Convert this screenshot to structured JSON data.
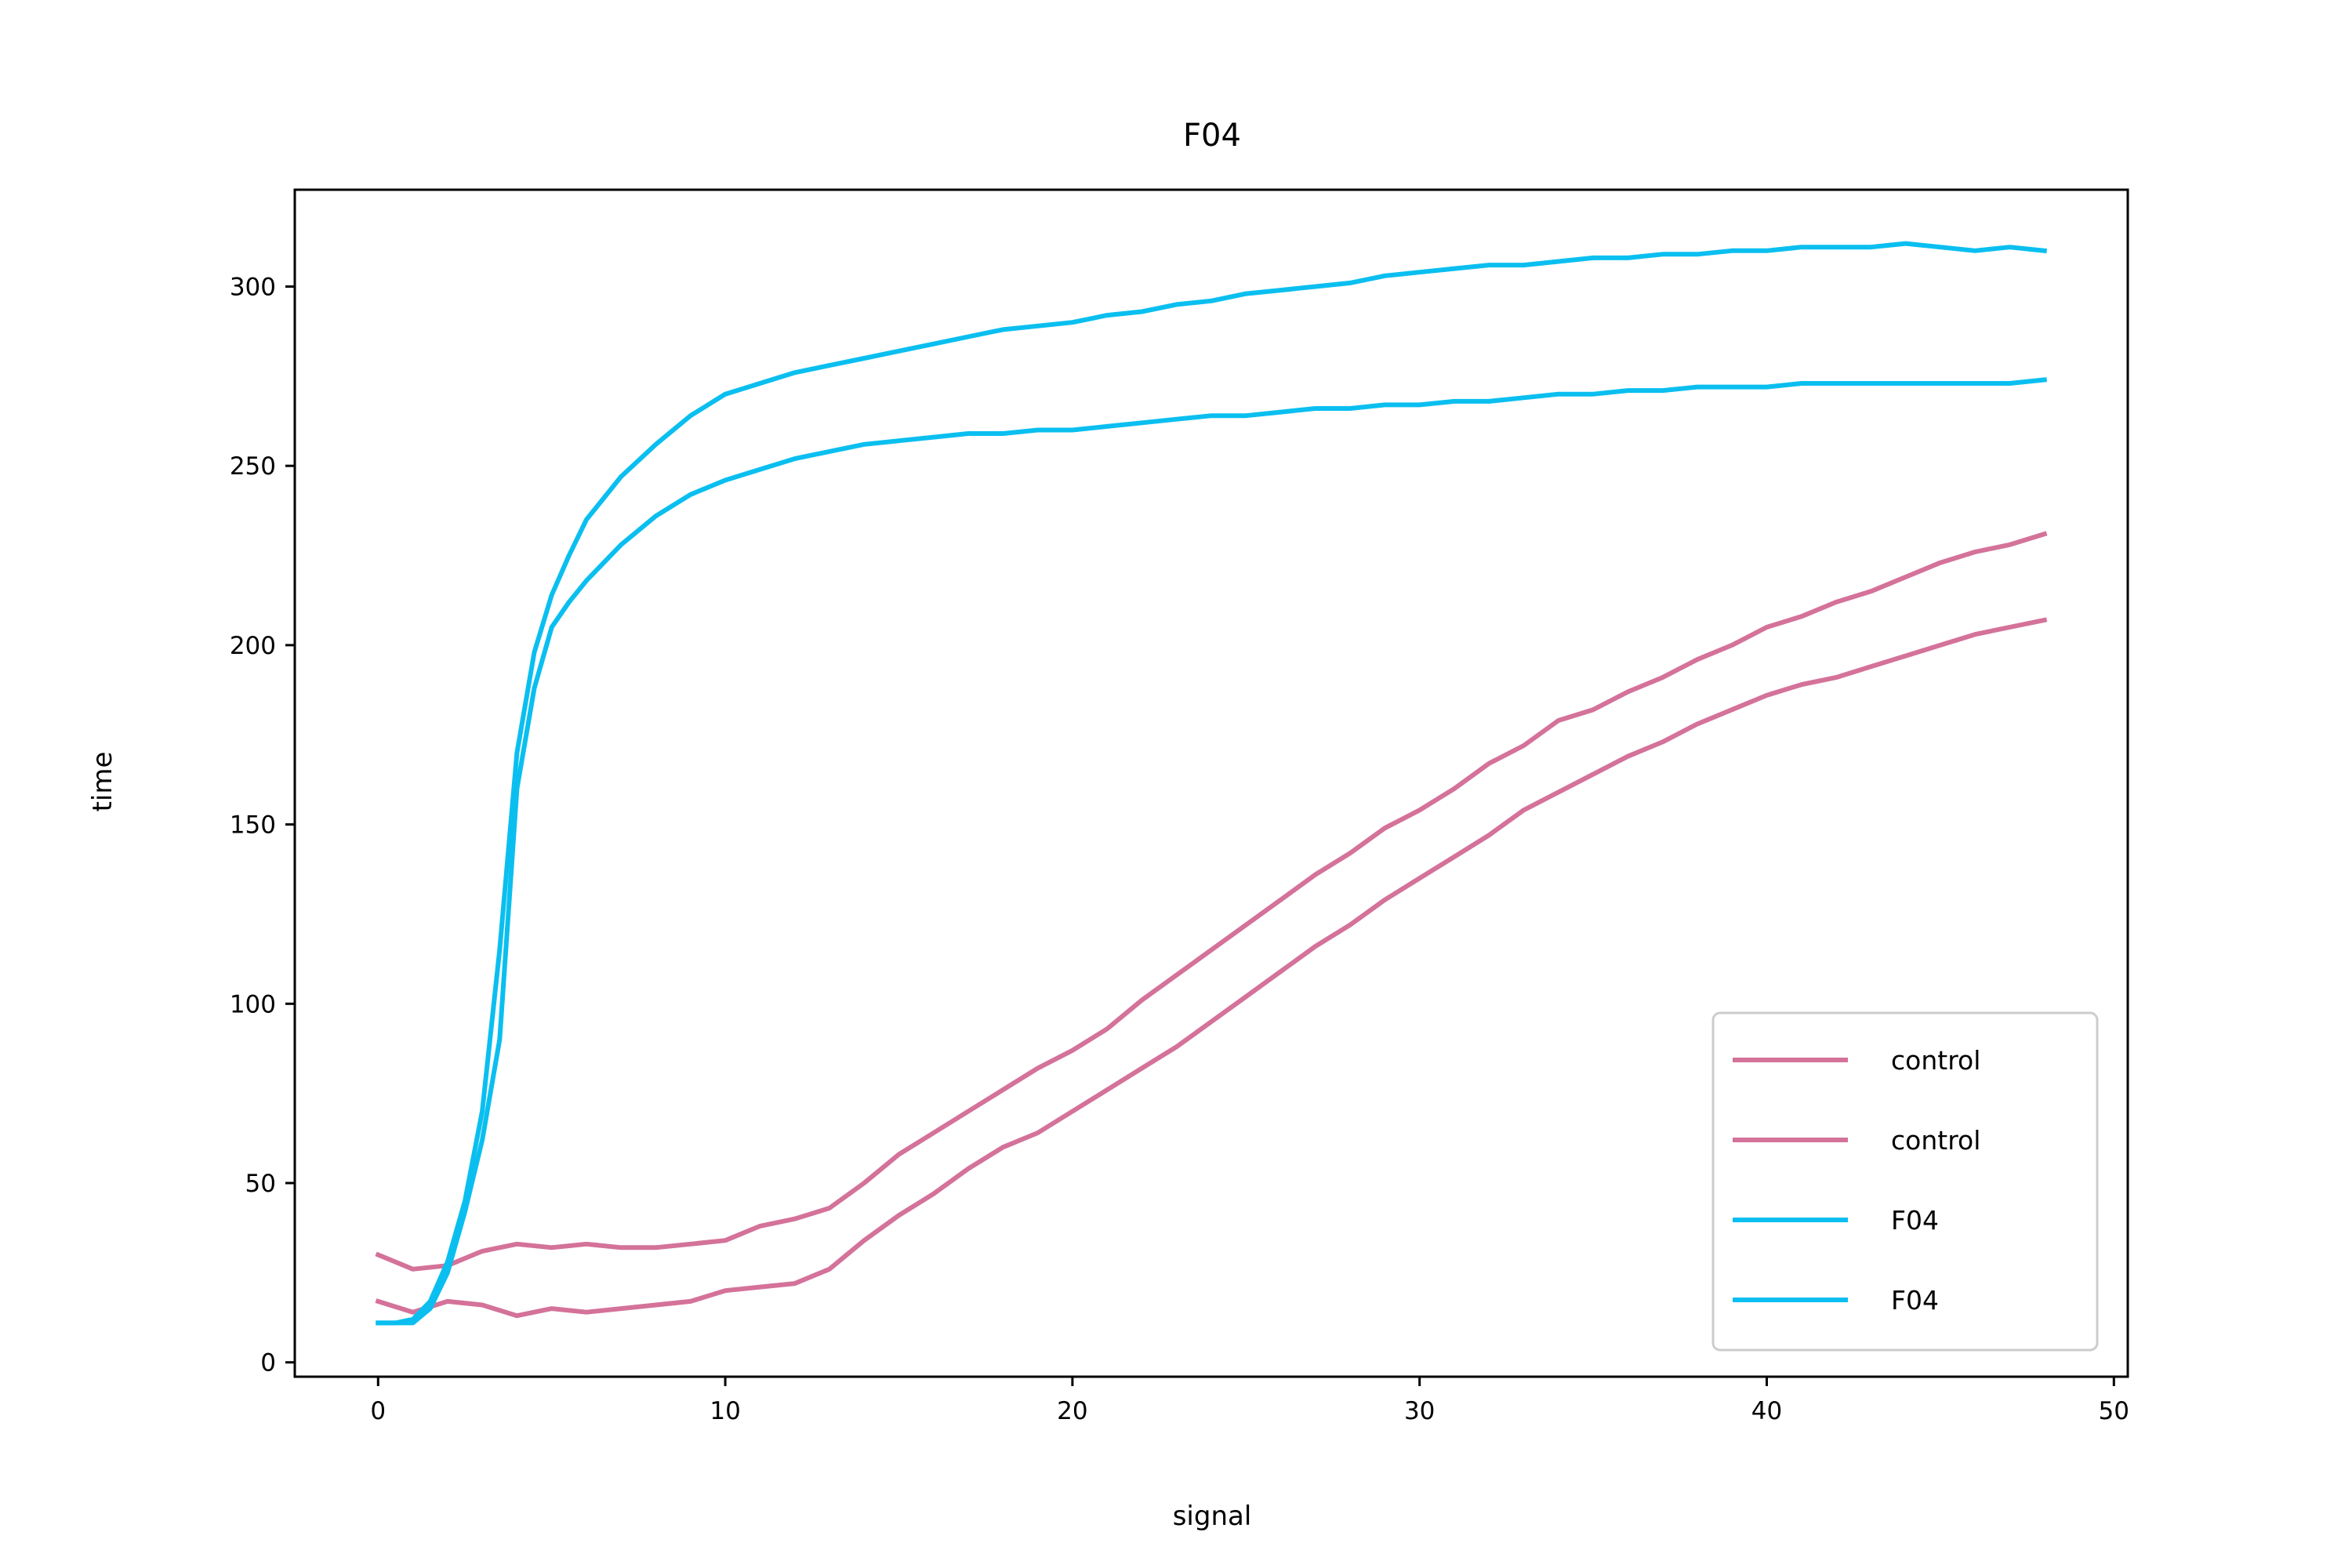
{
  "chart_data": {
    "type": "line",
    "title": "F04",
    "xlabel": "signal",
    "ylabel": "time",
    "xlim": [
      -2.4,
      50.4
    ],
    "ylim": [
      -4,
      327
    ],
    "x_ticks": [
      0,
      10,
      20,
      30,
      40,
      50
    ],
    "y_ticks": [
      0,
      50,
      100,
      150,
      200,
      250,
      300
    ],
    "grid": false,
    "legend_position": "lower-right",
    "colors": {
      "control": "#d4729a",
      "F04": "#0abff0"
    },
    "series": [
      {
        "name": "control",
        "color": "#d4729a",
        "x": [
          0,
          1,
          2,
          3,
          4,
          5,
          6,
          7,
          8,
          9,
          10,
          11,
          12,
          13,
          14,
          15,
          16,
          17,
          18,
          19,
          20,
          21,
          22,
          23,
          24,
          25,
          26,
          27,
          28,
          29,
          30,
          31,
          32,
          33,
          34,
          35,
          36,
          37,
          38,
          39,
          40,
          41,
          42,
          43,
          44,
          45,
          46,
          47,
          48
        ],
        "y": [
          30,
          26,
          27,
          31,
          33,
          32,
          33,
          32,
          32,
          33,
          34,
          38,
          40,
          43,
          50,
          58,
          64,
          70,
          76,
          82,
          87,
          93,
          101,
          108,
          115,
          122,
          129,
          136,
          142,
          149,
          154,
          160,
          167,
          172,
          179,
          182,
          187,
          191,
          196,
          200,
          205,
          208,
          212,
          215,
          219,
          223,
          226,
          228,
          231
        ]
      },
      {
        "name": "control",
        "color": "#d4729a",
        "x": [
          0,
          1,
          2,
          3,
          4,
          5,
          6,
          7,
          8,
          9,
          10,
          11,
          12,
          13,
          14,
          15,
          16,
          17,
          18,
          19,
          20,
          21,
          22,
          23,
          24,
          25,
          26,
          27,
          28,
          29,
          30,
          31,
          32,
          33,
          34,
          35,
          36,
          37,
          38,
          39,
          40,
          41,
          42,
          43,
          44,
          45,
          46,
          47,
          48
        ],
        "y": [
          17,
          14,
          17,
          16,
          13,
          15,
          14,
          15,
          16,
          17,
          20,
          21,
          22,
          26,
          34,
          41,
          47,
          54,
          60,
          64,
          70,
          76,
          82,
          88,
          95,
          102,
          109,
          116,
          122,
          129,
          135,
          141,
          147,
          154,
          159,
          164,
          169,
          173,
          178,
          182,
          186,
          189,
          191,
          194,
          197,
          200,
          203,
          205,
          207
        ]
      },
      {
        "name": "F04",
        "color": "#0abff0",
        "x": [
          0,
          0.5,
          1,
          1.5,
          2,
          2.5,
          3,
          3.5,
          4,
          4.5,
          5,
          5.5,
          6,
          7,
          8,
          9,
          10,
          11,
          12,
          13,
          14,
          15,
          16,
          17,
          18,
          19,
          20,
          21,
          22,
          23,
          24,
          25,
          26,
          27,
          28,
          29,
          30,
          31,
          32,
          33,
          34,
          35,
          36,
          37,
          38,
          39,
          40,
          41,
          42,
          43,
          44,
          45,
          46,
          47,
          48
        ],
        "y": [
          11,
          11,
          12,
          17,
          28,
          45,
          70,
          115,
          170,
          198,
          214,
          225,
          235,
          247,
          256,
          264,
          270,
          273,
          276,
          278,
          280,
          282,
          284,
          286,
          288,
          289,
          290,
          292,
          293,
          295,
          296,
          298,
          299,
          300,
          301,
          303,
          304,
          305,
          306,
          306,
          307,
          308,
          308,
          309,
          309,
          310,
          310,
          311,
          311,
          311,
          312,
          311,
          310,
          311,
          310
        ]
      },
      {
        "name": "F04",
        "color": "#0abff0",
        "x": [
          0,
          0.5,
          1,
          1.5,
          2,
          2.5,
          3,
          3.5,
          4,
          4.5,
          5,
          5.5,
          6,
          7,
          8,
          9,
          10,
          11,
          12,
          13,
          14,
          15,
          16,
          17,
          18,
          19,
          20,
          21,
          22,
          23,
          24,
          25,
          26,
          27,
          28,
          29,
          30,
          31,
          32,
          33,
          34,
          35,
          36,
          37,
          38,
          39,
          40,
          41,
          42,
          43,
          44,
          45,
          46,
          47,
          48
        ],
        "y": [
          11,
          11,
          11,
          15,
          25,
          42,
          62,
          90,
          160,
          188,
          205,
          212,
          218,
          228,
          236,
          242,
          246,
          249,
          252,
          254,
          256,
          257,
          258,
          259,
          259,
          260,
          260,
          261,
          262,
          263,
          264,
          264,
          265,
          266,
          266,
          267,
          267,
          268,
          268,
          269,
          270,
          270,
          271,
          271,
          272,
          272,
          272,
          273,
          273,
          273,
          273,
          273,
          273,
          273,
          274
        ]
      }
    ]
  }
}
